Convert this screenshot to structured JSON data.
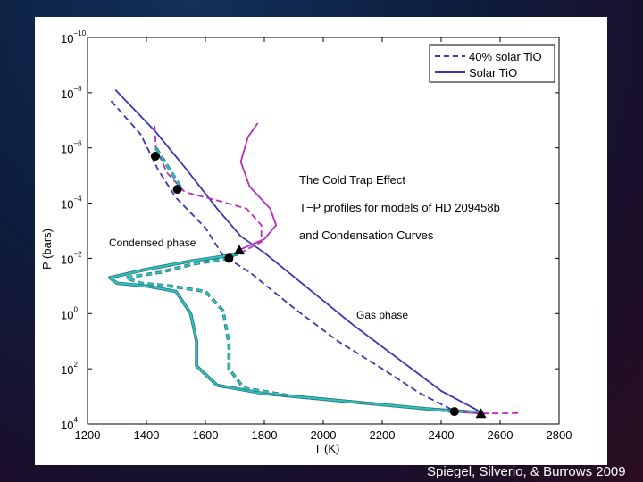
{
  "credit": "Spiegel, Silverio, & Burrows 2009",
  "annotations": {
    "title_line1": "The Cold Trap Effect",
    "title_line2": "T−P profiles for models of HD 209458b",
    "title_line3": "and Condensation Curves",
    "condensed": "Condensed phase",
    "gas": "Gas phase"
  },
  "colors": {
    "blue": "#3a34b8",
    "cyan": "#2ec4c4",
    "magenta": "#b52fb8",
    "cyan_dark": "#2a6f74"
  },
  "chart_data": {
    "type": "line",
    "xlabel": "T (K)",
    "ylabel": "P (bars)",
    "xlim": [
      1200,
      2800
    ],
    "ylim_log10": [
      -10,
      4
    ],
    "y_inverted": true,
    "x_ticks": [
      "1200",
      "1400",
      "1600",
      "1800",
      "2000",
      "2200",
      "2400",
      "2600",
      "2800"
    ],
    "y_ticks": [
      {
        "base": "10",
        "exp": "−10",
        "log": -10
      },
      {
        "base": "10",
        "exp": "−8",
        "log": -8
      },
      {
        "base": "10",
        "exp": "−6",
        "log": -6
      },
      {
        "base": "10",
        "exp": "−4",
        "log": -4
      },
      {
        "base": "10",
        "exp": "−2",
        "log": -2
      },
      {
        "base": "10",
        "exp": "0",
        "log": 0
      },
      {
        "base": "10",
        "exp": "2",
        "log": 2
      },
      {
        "base": "10",
        "exp": "4",
        "log": 4
      }
    ],
    "legend": {
      "position": "top-right",
      "entries": [
        {
          "label": "40% solar TiO",
          "style": "dashed",
          "color": "#3a34b8"
        },
        {
          "label": "Solar TiO",
          "style": "solid",
          "color": "#3a34b8"
        }
      ]
    },
    "series": [
      {
        "key": "solar_tp",
        "color": "#3a34b8",
        "style": "solid",
        "points": [
          [
            1295,
            -8.1
          ],
          [
            1430,
            -6.6
          ],
          [
            1530,
            -5.3
          ],
          [
            1640,
            -3.8
          ],
          [
            1720,
            -2.8
          ],
          [
            1800,
            -2.2
          ],
          [
            1950,
            -0.9
          ],
          [
            2100,
            0.4
          ],
          [
            2250,
            1.6
          ],
          [
            2400,
            2.8
          ],
          [
            2540,
            3.6
          ]
        ]
      },
      {
        "key": "tio40_tp",
        "color": "#3a34b8",
        "style": "dashed",
        "points": [
          [
            1280,
            -7.7
          ],
          [
            1380,
            -6.5
          ],
          [
            1440,
            -5.2
          ],
          [
            1500,
            -4.2
          ],
          [
            1600,
            -3.1
          ],
          [
            1660,
            -2.1
          ],
          [
            1750,
            -1.5
          ],
          [
            1900,
            -0.2
          ],
          [
            2050,
            1.0
          ],
          [
            2200,
            2.0
          ],
          [
            2330,
            2.9
          ],
          [
            2440,
            3.5
          ],
          [
            2480,
            3.6
          ]
        ]
      },
      {
        "key": "solar_magenta",
        "color": "#b52fb8",
        "style": "solid",
        "points": [
          [
            1778,
            -6.9
          ],
          [
            1745,
            -6.4
          ],
          [
            1720,
            -5.5
          ],
          [
            1750,
            -4.6
          ],
          [
            1820,
            -3.8
          ],
          [
            1840,
            -3.2
          ],
          [
            1800,
            -2.7
          ],
          [
            1715,
            -2.3
          ],
          [
            1710,
            -2.2
          ]
        ]
      },
      {
        "key": "tio40_magenta_upper",
        "color": "#b52fb8",
        "style": "dashed",
        "points": [
          [
            1428,
            -6.8
          ],
          [
            1432,
            -6.0
          ],
          [
            1470,
            -5.1
          ],
          [
            1530,
            -4.4
          ],
          [
            1640,
            -4.1
          ],
          [
            1740,
            -3.8
          ],
          [
            1790,
            -3.2
          ],
          [
            1790,
            -2.6
          ],
          [
            1720,
            -2.2
          ],
          [
            1680,
            -2.0
          ]
        ]
      },
      {
        "key": "solar_cyan",
        "color": "#2ec4c4",
        "style": "solid",
        "points": [
          [
            1710,
            -2.15
          ],
          [
            1550,
            -1.9
          ],
          [
            1400,
            -1.6
          ],
          [
            1275,
            -1.3
          ],
          [
            1300,
            -1.1
          ],
          [
            1400,
            -1.0
          ],
          [
            1500,
            -0.8
          ],
          [
            1550,
            0.0
          ],
          [
            1570,
            1.0
          ],
          [
            1570,
            1.9
          ],
          [
            1640,
            2.6
          ],
          [
            1800,
            2.9
          ],
          [
            2100,
            3.2
          ],
          [
            2350,
            3.45
          ],
          [
            2540,
            3.6
          ]
        ]
      },
      {
        "key": "tio40_cyan",
        "color": "#2ec4c4",
        "style": "dashed",
        "points": [
          [
            1680,
            -2.0
          ],
          [
            1560,
            -1.8
          ],
          [
            1450,
            -1.5
          ],
          [
            1330,
            -1.3
          ],
          [
            1380,
            -1.1
          ],
          [
            1480,
            -1.0
          ],
          [
            1600,
            -0.8
          ],
          [
            1660,
            -0.1
          ],
          [
            1680,
            1.1
          ],
          [
            1680,
            2.0
          ],
          [
            1730,
            2.7
          ],
          [
            1900,
            3.0
          ],
          [
            2150,
            3.25
          ],
          [
            2400,
            3.5
          ],
          [
            2440,
            3.55
          ]
        ]
      },
      {
        "key": "tio40_cyan_upper",
        "color": "#2ec4c4",
        "style": "dashed",
        "points": [
          [
            1432,
            -6.0
          ],
          [
            1480,
            -5.2
          ],
          [
            1520,
            -4.5
          ]
        ]
      },
      {
        "key": "magenta_tail",
        "color": "#b52fb8",
        "style": "dashed",
        "points": [
          [
            2440,
            3.55
          ],
          [
            2540,
            3.62
          ],
          [
            2600,
            3.62
          ],
          [
            2670,
            3.6
          ]
        ]
      }
    ],
    "markers": [
      {
        "shape": "circle",
        "x": 1430,
        "y": -5.7
      },
      {
        "shape": "circle",
        "x": 1505,
        "y": -4.5
      },
      {
        "shape": "circle",
        "x": 1680,
        "y": -2.0
      },
      {
        "shape": "circle",
        "x": 2445,
        "y": 3.55
      },
      {
        "shape": "triangle",
        "x": 1715,
        "y": -2.3
      },
      {
        "shape": "triangle",
        "x": 2535,
        "y": 3.62
      }
    ]
  }
}
